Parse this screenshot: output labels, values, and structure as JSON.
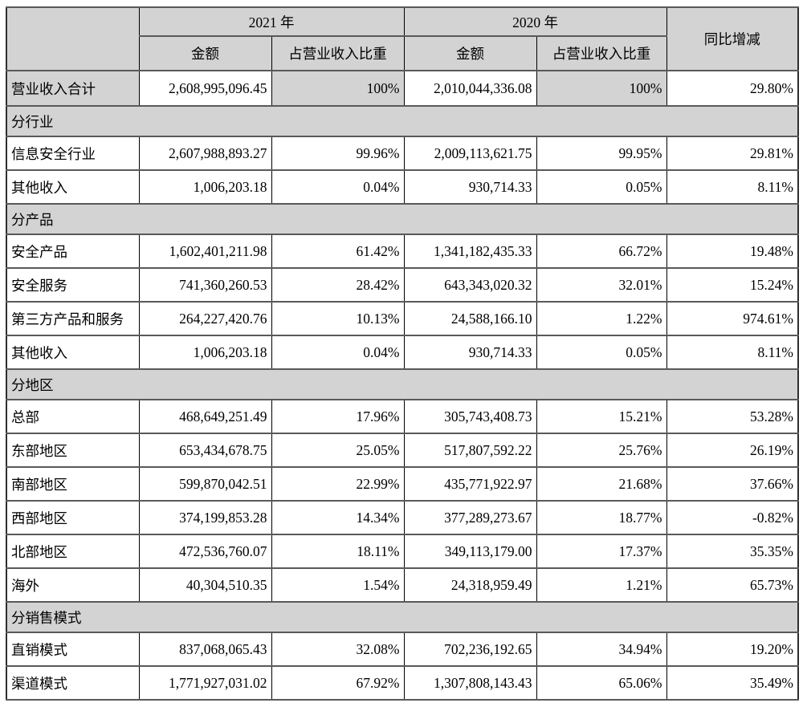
{
  "table": {
    "header": {
      "year_2021": "2021 年",
      "year_2020": "2020 年",
      "yoy": "同比增减",
      "amount": "金额",
      "ratio": "占营业收入比重"
    },
    "total_row": {
      "label": "营业收入合计",
      "a2021": "2,608,995,096.45",
      "p2021": "100%",
      "a2020": "2,010,044,336.08",
      "p2020": "100%",
      "yoy": "29.80%"
    },
    "sections": [
      {
        "title": "分行业",
        "rows": [
          {
            "label": "信息安全行业",
            "a2021": "2,607,988,893.27",
            "p2021": "99.96%",
            "a2020": "2,009,113,621.75",
            "p2020": "99.95%",
            "yoy": "29.81%"
          },
          {
            "label": "其他收入",
            "a2021": "1,006,203.18",
            "p2021": "0.04%",
            "a2020": "930,714.33",
            "p2020": "0.05%",
            "yoy": "8.11%"
          }
        ]
      },
      {
        "title": "分产品",
        "rows": [
          {
            "label": "安全产品",
            "a2021": "1,602,401,211.98",
            "p2021": "61.42%",
            "a2020": "1,341,182,435.33",
            "p2020": "66.72%",
            "yoy": "19.48%"
          },
          {
            "label": "安全服务",
            "a2021": "741,360,260.53",
            "p2021": "28.42%",
            "a2020": "643,343,020.32",
            "p2020": "32.01%",
            "yoy": "15.24%"
          },
          {
            "label": "第三方产品和服务",
            "a2021": "264,227,420.76",
            "p2021": "10.13%",
            "a2020": "24,588,166.10",
            "p2020": "1.22%",
            "yoy": "974.61%"
          },
          {
            "label": "其他收入",
            "a2021": "1,006,203.18",
            "p2021": "0.04%",
            "a2020": "930,714.33",
            "p2020": "0.05%",
            "yoy": "8.11%"
          }
        ]
      },
      {
        "title": "分地区",
        "rows": [
          {
            "label": "总部",
            "a2021": "468,649,251.49",
            "p2021": "17.96%",
            "a2020": "305,743,408.73",
            "p2020": "15.21%",
            "yoy": "53.28%"
          },
          {
            "label": "东部地区",
            "a2021": "653,434,678.75",
            "p2021": "25.05%",
            "a2020": "517,807,592.22",
            "p2020": "25.76%",
            "yoy": "26.19%"
          },
          {
            "label": "南部地区",
            "a2021": "599,870,042.51",
            "p2021": "22.99%",
            "a2020": "435,771,922.97",
            "p2020": "21.68%",
            "yoy": "37.66%"
          },
          {
            "label": "西部地区",
            "a2021": "374,199,853.28",
            "p2021": "14.34%",
            "a2020": "377,289,273.67",
            "p2020": "18.77%",
            "yoy": "-0.82%"
          },
          {
            "label": "北部地区",
            "a2021": "472,536,760.07",
            "p2021": "18.11%",
            "a2020": "349,113,179.00",
            "p2020": "17.37%",
            "yoy": "35.35%"
          },
          {
            "label": "海外",
            "a2021": "40,304,510.35",
            "p2021": "1.54%",
            "a2020": "24,318,959.49",
            "p2020": "1.21%",
            "yoy": "65.73%"
          }
        ]
      },
      {
        "title": "分销售模式",
        "rows": [
          {
            "label": "直销模式",
            "a2021": "837,068,065.43",
            "p2021": "32.08%",
            "a2020": "702,236,192.65",
            "p2020": "34.94%",
            "yoy": "19.20%"
          },
          {
            "label": "渠道模式",
            "a2021": "1,771,927,031.02",
            "p2021": "67.92%",
            "a2020": "1,307,808,143.43",
            "p2020": "65.06%",
            "yoy": "35.49%"
          }
        ]
      }
    ]
  }
}
